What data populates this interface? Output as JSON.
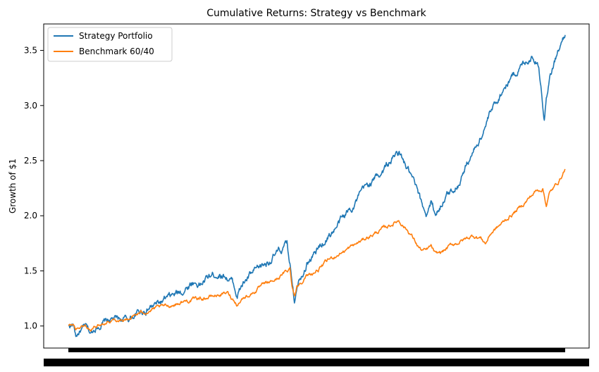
{
  "chart_data": {
    "type": "line",
    "title": "Cumulative Returns: Strategy vs Benchmark",
    "xlabel": "",
    "ylabel": "Growth of $1",
    "x_index_range": [
      0,
      1000
    ],
    "ylim": [
      0.8,
      3.74
    ],
    "yticks": [
      1.0,
      1.5,
      2.0,
      2.5,
      3.0,
      3.5
    ],
    "ytick_labels": [
      "1.0",
      "1.5",
      "2.0",
      "2.5",
      "3.0",
      "3.5"
    ],
    "x_tick_labels_note": "dense overlapping date tick labels (illegible)",
    "grid": false,
    "legend_position": "top-left",
    "series": [
      {
        "name": "Strategy Portfolio",
        "color": "#1f77b4",
        "points": [
          [
            0,
            1.0
          ],
          [
            10,
            1.01
          ],
          [
            15,
            0.91
          ],
          [
            25,
            0.96
          ],
          [
            35,
            0.99
          ],
          [
            45,
            0.92
          ],
          [
            55,
            0.99
          ],
          [
            70,
            1.03
          ],
          [
            90,
            1.06
          ],
          [
            120,
            1.06
          ],
          [
            140,
            1.12
          ],
          [
            170,
            1.18
          ],
          [
            200,
            1.24
          ],
          [
            230,
            1.32
          ],
          [
            250,
            1.4
          ],
          [
            265,
            1.38
          ],
          [
            285,
            1.45
          ],
          [
            300,
            1.48
          ],
          [
            315,
            1.47
          ],
          [
            330,
            1.4
          ],
          [
            340,
            1.28
          ],
          [
            350,
            1.37
          ],
          [
            365,
            1.45
          ],
          [
            380,
            1.5
          ],
          [
            395,
            1.56
          ],
          [
            410,
            1.62
          ],
          [
            425,
            1.67
          ],
          [
            440,
            1.73
          ],
          [
            448,
            1.5
          ],
          [
            452,
            1.37
          ],
          [
            455,
            1.24
          ],
          [
            460,
            1.4
          ],
          [
            470,
            1.5
          ],
          [
            480,
            1.58
          ],
          [
            500,
            1.68
          ],
          [
            520,
            1.8
          ],
          [
            540,
            1.9
          ],
          [
            560,
            2.02
          ],
          [
            580,
            2.14
          ],
          [
            600,
            2.26
          ],
          [
            620,
            2.35
          ],
          [
            640,
            2.45
          ],
          [
            655,
            2.53
          ],
          [
            665,
            2.57
          ],
          [
            675,
            2.48
          ],
          [
            685,
            2.4
          ],
          [
            700,
            2.24
          ],
          [
            710,
            2.1
          ],
          [
            720,
            2.02
          ],
          [
            730,
            2.12
          ],
          [
            740,
            2.02
          ],
          [
            755,
            2.15
          ],
          [
            770,
            2.22
          ],
          [
            785,
            2.3
          ],
          [
            800,
            2.45
          ],
          [
            815,
            2.58
          ],
          [
            830,
            2.72
          ],
          [
            845,
            2.88
          ],
          [
            860,
            3.02
          ],
          [
            875,
            3.15
          ],
          [
            890,
            3.25
          ],
          [
            905,
            3.33
          ],
          [
            920,
            3.4
          ],
          [
            935,
            3.46
          ],
          [
            945,
            3.38
          ],
          [
            952,
            3.18
          ],
          [
            958,
            2.9
          ],
          [
            962,
            3.1
          ],
          [
            968,
            3.25
          ],
          [
            975,
            3.35
          ],
          [
            985,
            3.48
          ],
          [
            995,
            3.58
          ],
          [
            1000,
            3.64
          ]
        ]
      },
      {
        "name": "Benchmark 60/40",
        "color": "#ff7f0e",
        "points": [
          [
            0,
            1.0
          ],
          [
            10,
            1.01
          ],
          [
            15,
            0.97
          ],
          [
            25,
            0.99
          ],
          [
            35,
            1.0
          ],
          [
            45,
            0.96
          ],
          [
            55,
            1.0
          ],
          [
            70,
            1.03
          ],
          [
            90,
            1.06
          ],
          [
            120,
            1.06
          ],
          [
            140,
            1.11
          ],
          [
            170,
            1.15
          ],
          [
            200,
            1.18
          ],
          [
            230,
            1.22
          ],
          [
            250,
            1.24
          ],
          [
            280,
            1.26
          ],
          [
            300,
            1.28
          ],
          [
            320,
            1.3
          ],
          [
            330,
            1.25
          ],
          [
            340,
            1.2
          ],
          [
            350,
            1.25
          ],
          [
            370,
            1.3
          ],
          [
            390,
            1.36
          ],
          [
            410,
            1.4
          ],
          [
            430,
            1.46
          ],
          [
            446,
            1.52
          ],
          [
            450,
            1.38
          ],
          [
            455,
            1.28
          ],
          [
            460,
            1.36
          ],
          [
            475,
            1.44
          ],
          [
            500,
            1.5
          ],
          [
            525,
            1.6
          ],
          [
            550,
            1.67
          ],
          [
            575,
            1.73
          ],
          [
            600,
            1.8
          ],
          [
            625,
            1.86
          ],
          [
            650,
            1.92
          ],
          [
            665,
            1.96
          ],
          [
            675,
            1.91
          ],
          [
            690,
            1.83
          ],
          [
            700,
            1.75
          ],
          [
            710,
            1.69
          ],
          [
            720,
            1.68
          ],
          [
            730,
            1.72
          ],
          [
            740,
            1.64
          ],
          [
            755,
            1.68
          ],
          [
            770,
            1.73
          ],
          [
            785,
            1.76
          ],
          [
            800,
            1.79
          ],
          [
            815,
            1.82
          ],
          [
            830,
            1.8
          ],
          [
            840,
            1.75
          ],
          [
            850,
            1.84
          ],
          [
            865,
            1.9
          ],
          [
            880,
            1.96
          ],
          [
            895,
            2.02
          ],
          [
            910,
            2.08
          ],
          [
            925,
            2.15
          ],
          [
            940,
            2.22
          ],
          [
            955,
            2.25
          ],
          [
            962,
            2.1
          ],
          [
            968,
            2.2
          ],
          [
            975,
            2.24
          ],
          [
            985,
            2.3
          ],
          [
            995,
            2.38
          ],
          [
            1000,
            2.43
          ]
        ]
      }
    ]
  }
}
